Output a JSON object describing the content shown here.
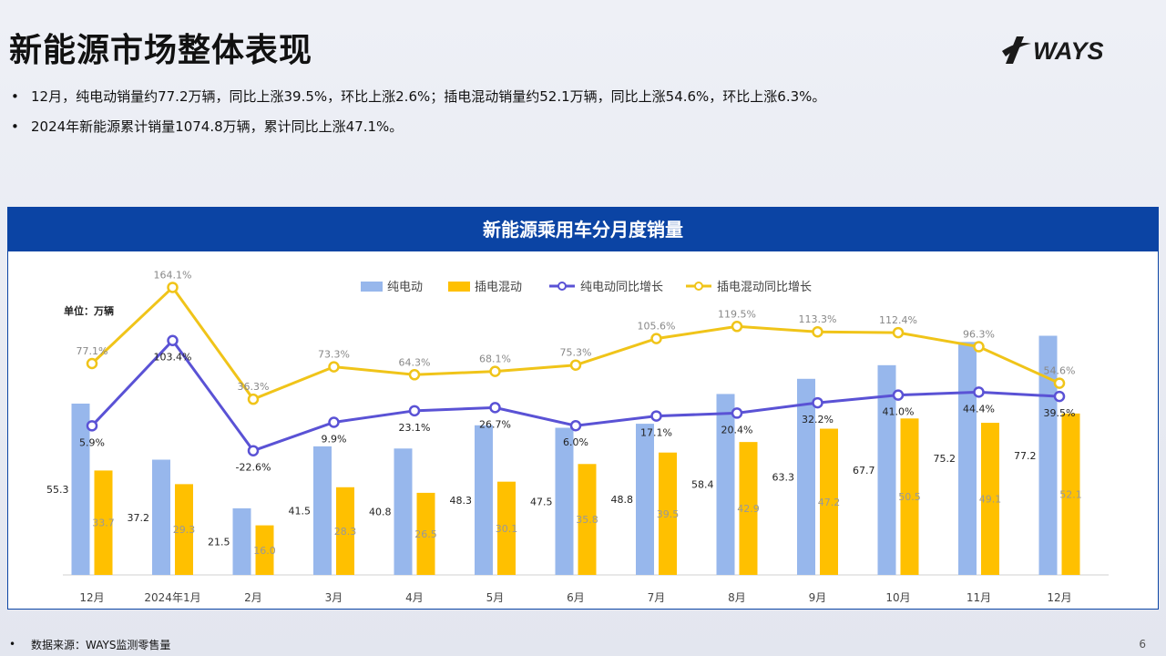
{
  "title": "新能源市场整体表现",
  "logo_text": "WAYS",
  "bullets": [
    "12月，纯电动销量约77.2万辆，同比上涨39.5%，环比上涨2.6%；插电混动销量约52.1万辆，同比上涨54.6%，环比上涨6.3%。",
    "2024年新能源累计销量1074.8万辆，累计同比上涨47.1%。"
  ],
  "chart_header": "新能源乘用车分月度销量",
  "chart_data": {
    "type": "bar",
    "unit_label": "单位：万辆",
    "categories": [
      "12月",
      "2024年1月",
      "2月",
      "3月",
      "4月",
      "5月",
      "6月",
      "7月",
      "8月",
      "9月",
      "10月",
      "11月",
      "12月"
    ],
    "series": [
      {
        "name": "纯电动",
        "type": "bar",
        "color": "#97b7ec",
        "values": [
          55.3,
          37.2,
          21.5,
          41.5,
          40.8,
          48.3,
          47.5,
          48.8,
          58.4,
          63.3,
          67.7,
          75.2,
          77.2
        ]
      },
      {
        "name": "插电混动",
        "type": "bar",
        "color": "#ffc000",
        "values": [
          33.7,
          29.3,
          16.0,
          28.3,
          26.5,
          30.1,
          35.8,
          39.5,
          42.9,
          47.2,
          50.5,
          49.1,
          52.1
        ]
      },
      {
        "name": "纯电动同比增长",
        "type": "line",
        "color": "#5a52d5",
        "values": [
          5.9,
          103.4,
          -22.6,
          9.9,
          23.1,
          26.7,
          6.0,
          17.1,
          20.4,
          32.2,
          41.0,
          44.4,
          39.5
        ],
        "labels": [
          "5.9%",
          "103.4%",
          "-22.6%",
          "9.9%",
          "23.1%",
          "26.7%",
          "6.0%",
          "17.1%",
          "20.4%",
          "32.2%",
          "41.0%",
          "44.4%",
          "39.5%"
        ]
      },
      {
        "name": "插电混动同比增长",
        "type": "line",
        "color": "#f0c419",
        "values": [
          77.1,
          164.1,
          36.3,
          73.3,
          64.3,
          68.1,
          75.3,
          105.6,
          119.5,
          113.3,
          112.4,
          96.3,
          54.6
        ],
        "labels": [
          "77.1%",
          "164.1%",
          "36.3%",
          "73.3%",
          "64.3%",
          "68.1%",
          "75.3%",
          "105.6%",
          "119.5%",
          "113.3%",
          "112.4%",
          "96.3%",
          "54.6%"
        ]
      }
    ],
    "legend_position": "top-center",
    "grid": false
  },
  "footer": {
    "bullet": "•",
    "source": "数据来源：WAYS监测零售量"
  },
  "page_number": "6"
}
